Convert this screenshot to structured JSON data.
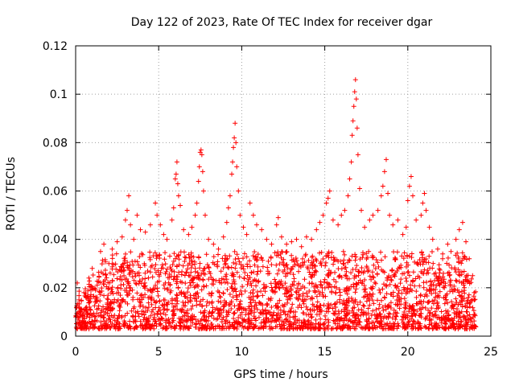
{
  "chart_data": {
    "type": "scatter",
    "title": "Day 122 of 2023, Rate Of TEC Index for receiver dgar",
    "xlabel": "GPS time / hours",
    "ylabel": "ROTI / TECUs",
    "xlim": [
      0,
      25
    ],
    "ylim": [
      0,
      0.12
    ],
    "x_ticks": [
      {
        "value": 0,
        "label": "0"
      },
      {
        "value": 5,
        "label": "5"
      },
      {
        "value": 10,
        "label": "10"
      },
      {
        "value": 15,
        "label": "15"
      },
      {
        "value": 20,
        "label": "20"
      },
      {
        "value": 25,
        "label": "25"
      }
    ],
    "y_ticks": [
      {
        "value": 0,
        "label": "0"
      },
      {
        "value": 0.02,
        "label": "0.02"
      },
      {
        "value": 0.04,
        "label": "0.04"
      },
      {
        "value": 0.06,
        "label": "0.06"
      },
      {
        "value": 0.08,
        "label": "0.08"
      },
      {
        "value": 0.1,
        "label": "0.1"
      },
      {
        "value": 0.12,
        "label": "0.12"
      }
    ],
    "grid": true,
    "marker": "plus",
    "marker_color": "#ff0000",
    "series": [
      {
        "points": [
          [
            0.1,
            0.022
          ],
          [
            0.2,
            0.015
          ],
          [
            0.3,
            0.009
          ],
          [
            0.5,
            0.018
          ],
          [
            0.8,
            0.024
          ],
          [
            1.0,
            0.028
          ],
          [
            1.2,
            0.019
          ],
          [
            1.5,
            0.035
          ],
          [
            1.7,
            0.038
          ],
          [
            2.0,
            0.03
          ],
          [
            2.2,
            0.036
          ],
          [
            2.5,
            0.039
          ],
          [
            2.8,
            0.041
          ],
          [
            3.0,
            0.048
          ],
          [
            3.1,
            0.052
          ],
          [
            3.2,
            0.058
          ],
          [
            3.3,
            0.046
          ],
          [
            3.5,
            0.04
          ],
          [
            3.7,
            0.05
          ],
          [
            3.9,
            0.044
          ],
          [
            4.2,
            0.043
          ],
          [
            4.5,
            0.046
          ],
          [
            4.8,
            0.055
          ],
          [
            4.9,
            0.05
          ],
          [
            5.1,
            0.046
          ],
          [
            5.3,
            0.042
          ],
          [
            5.5,
            0.04
          ],
          [
            5.8,
            0.048
          ],
          [
            5.9,
            0.053
          ],
          [
            6.0,
            0.065
          ],
          [
            6.05,
            0.067
          ],
          [
            6.1,
            0.072
          ],
          [
            6.15,
            0.063
          ],
          [
            6.2,
            0.058
          ],
          [
            6.3,
            0.054
          ],
          [
            6.5,
            0.044
          ],
          [
            6.8,
            0.042
          ],
          [
            7.0,
            0.045
          ],
          [
            7.2,
            0.05
          ],
          [
            7.3,
            0.055
          ],
          [
            7.4,
            0.064
          ],
          [
            7.45,
            0.07
          ],
          [
            7.5,
            0.076
          ],
          [
            7.55,
            0.077
          ],
          [
            7.6,
            0.075
          ],
          [
            7.65,
            0.068
          ],
          [
            7.7,
            0.06
          ],
          [
            7.8,
            0.05
          ],
          [
            8.0,
            0.04
          ],
          [
            8.3,
            0.038
          ],
          [
            8.6,
            0.036
          ],
          [
            8.9,
            0.041
          ],
          [
            9.1,
            0.047
          ],
          [
            9.2,
            0.053
          ],
          [
            9.3,
            0.058
          ],
          [
            9.4,
            0.067
          ],
          [
            9.45,
            0.072
          ],
          [
            9.5,
            0.078
          ],
          [
            9.55,
            0.082
          ],
          [
            9.6,
            0.088
          ],
          [
            9.65,
            0.08
          ],
          [
            9.7,
            0.07
          ],
          [
            9.8,
            0.06
          ],
          [
            9.9,
            0.05
          ],
          [
            10.1,
            0.045
          ],
          [
            10.3,
            0.042
          ],
          [
            10.5,
            0.055
          ],
          [
            10.7,
            0.05
          ],
          [
            10.9,
            0.046
          ],
          [
            11.2,
            0.044
          ],
          [
            11.5,
            0.04
          ],
          [
            11.8,
            0.038
          ],
          [
            12.1,
            0.046
          ],
          [
            12.2,
            0.049
          ],
          [
            12.4,
            0.041
          ],
          [
            12.7,
            0.038
          ],
          [
            13.0,
            0.039
          ],
          [
            13.3,
            0.04
          ],
          [
            13.6,
            0.037
          ],
          [
            13.9,
            0.041
          ],
          [
            14.2,
            0.04
          ],
          [
            14.5,
            0.044
          ],
          [
            14.7,
            0.047
          ],
          [
            14.9,
            0.05
          ],
          [
            15.1,
            0.055
          ],
          [
            15.2,
            0.057
          ],
          [
            15.3,
            0.06
          ],
          [
            15.5,
            0.048
          ],
          [
            15.8,
            0.046
          ],
          [
            16.0,
            0.05
          ],
          [
            16.2,
            0.052
          ],
          [
            16.4,
            0.058
          ],
          [
            16.5,
            0.065
          ],
          [
            16.6,
            0.072
          ],
          [
            16.65,
            0.083
          ],
          [
            16.7,
            0.089
          ],
          [
            16.75,
            0.095
          ],
          [
            16.8,
            0.101
          ],
          [
            16.85,
            0.106
          ],
          [
            16.9,
            0.098
          ],
          [
            16.95,
            0.086
          ],
          [
            17.0,
            0.075
          ],
          [
            17.1,
            0.061
          ],
          [
            17.2,
            0.052
          ],
          [
            17.4,
            0.045
          ],
          [
            17.7,
            0.048
          ],
          [
            17.9,
            0.05
          ],
          [
            18.2,
            0.052
          ],
          [
            18.4,
            0.058
          ],
          [
            18.5,
            0.062
          ],
          [
            18.6,
            0.068
          ],
          [
            18.7,
            0.073
          ],
          [
            18.8,
            0.059
          ],
          [
            18.9,
            0.05
          ],
          [
            19.1,
            0.046
          ],
          [
            19.4,
            0.048
          ],
          [
            19.7,
            0.042
          ],
          [
            19.9,
            0.045
          ],
          [
            20.0,
            0.056
          ],
          [
            20.1,
            0.062
          ],
          [
            20.2,
            0.066
          ],
          [
            20.3,
            0.058
          ],
          [
            20.5,
            0.048
          ],
          [
            20.8,
            0.05
          ],
          [
            20.9,
            0.055
          ],
          [
            21.0,
            0.059
          ],
          [
            21.1,
            0.052
          ],
          [
            21.3,
            0.045
          ],
          [
            21.5,
            0.04
          ],
          [
            21.8,
            0.036
          ],
          [
            22.1,
            0.034
          ],
          [
            22.4,
            0.038
          ],
          [
            22.6,
            0.035
          ],
          [
            22.9,
            0.04
          ],
          [
            23.1,
            0.044
          ],
          [
            23.3,
            0.047
          ],
          [
            23.5,
            0.039
          ],
          [
            23.7,
            0.032
          ],
          [
            23.9,
            0.025
          ],
          [
            24.0,
            0.018
          ],
          [
            0.4,
            0.006
          ],
          [
            1.1,
            0.005
          ],
          [
            2.3,
            0.004
          ],
          [
            3.6,
            0.006
          ],
          [
            4.4,
            0.005
          ],
          [
            5.6,
            0.007
          ],
          [
            6.7,
            0.006
          ],
          [
            8.2,
            0.005
          ],
          [
            9.0,
            0.006
          ],
          [
            10.6,
            0.005
          ],
          [
            11.6,
            0.007
          ],
          [
            12.9,
            0.006
          ],
          [
            13.8,
            0.006
          ],
          [
            14.6,
            0.005
          ],
          [
            15.6,
            0.006
          ],
          [
            16.3,
            0.007
          ],
          [
            17.6,
            0.006
          ],
          [
            18.3,
            0.004
          ],
          [
            19.2,
            0.005
          ],
          [
            20.6,
            0.006
          ],
          [
            21.6,
            0.004
          ],
          [
            22.3,
            0.005
          ],
          [
            23.2,
            0.006
          ],
          [
            23.8,
            0.004
          ]
        ]
      }
    ]
  }
}
